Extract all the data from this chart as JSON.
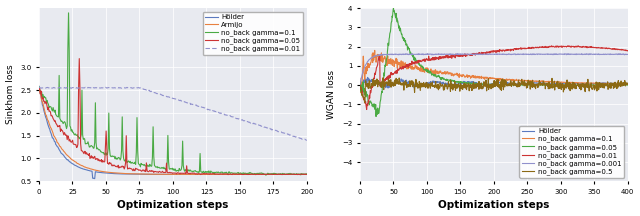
{
  "fig_width": 6.4,
  "fig_height": 2.16,
  "dpi": 100,
  "bg_color": "#e8eaf0",
  "left_ylabel": "Sinkhom loss",
  "right_ylabel": "WGAN loss",
  "xlabel": "Optimization steps",
  "left_xlim": [
    0,
    200
  ],
  "left_ylim": [
    0.5,
    4.3
  ],
  "right_xlim": [
    0,
    400
  ],
  "right_ylim": [
    -5,
    4
  ],
  "left_yticks": [
    0.5,
    1.0,
    1.5,
    2.0,
    2.5,
    3.0
  ],
  "right_yticks": [
    -4,
    -3,
    -2,
    -1,
    0,
    1,
    2,
    3,
    4
  ],
  "left_xticks": [
    0,
    25,
    50,
    75,
    100,
    125,
    150,
    175,
    200
  ],
  "right_xticks": [
    0,
    50,
    100,
    150,
    200,
    250,
    300,
    350,
    400
  ],
  "left_legend": [
    "Hölder",
    "Armijo",
    "no_back gamma=0.1",
    "no_back gamma=0.05",
    "no_back gamma=0.01"
  ],
  "right_legend": [
    "Hölder",
    "no_back gamma=0.1",
    "no_back gamma=0.05",
    "no_back gamma=0.01",
    "no_back gamma=0.001",
    "no_back gamma=0.5"
  ],
  "left_colors": [
    "#5b7abf",
    "#e88040",
    "#4aaa44",
    "#cc3333",
    "#9090cc"
  ],
  "right_colors": [
    "#5b7abf",
    "#e88040",
    "#4aaa44",
    "#cc3333",
    "#9090cc",
    "#8b6914"
  ]
}
